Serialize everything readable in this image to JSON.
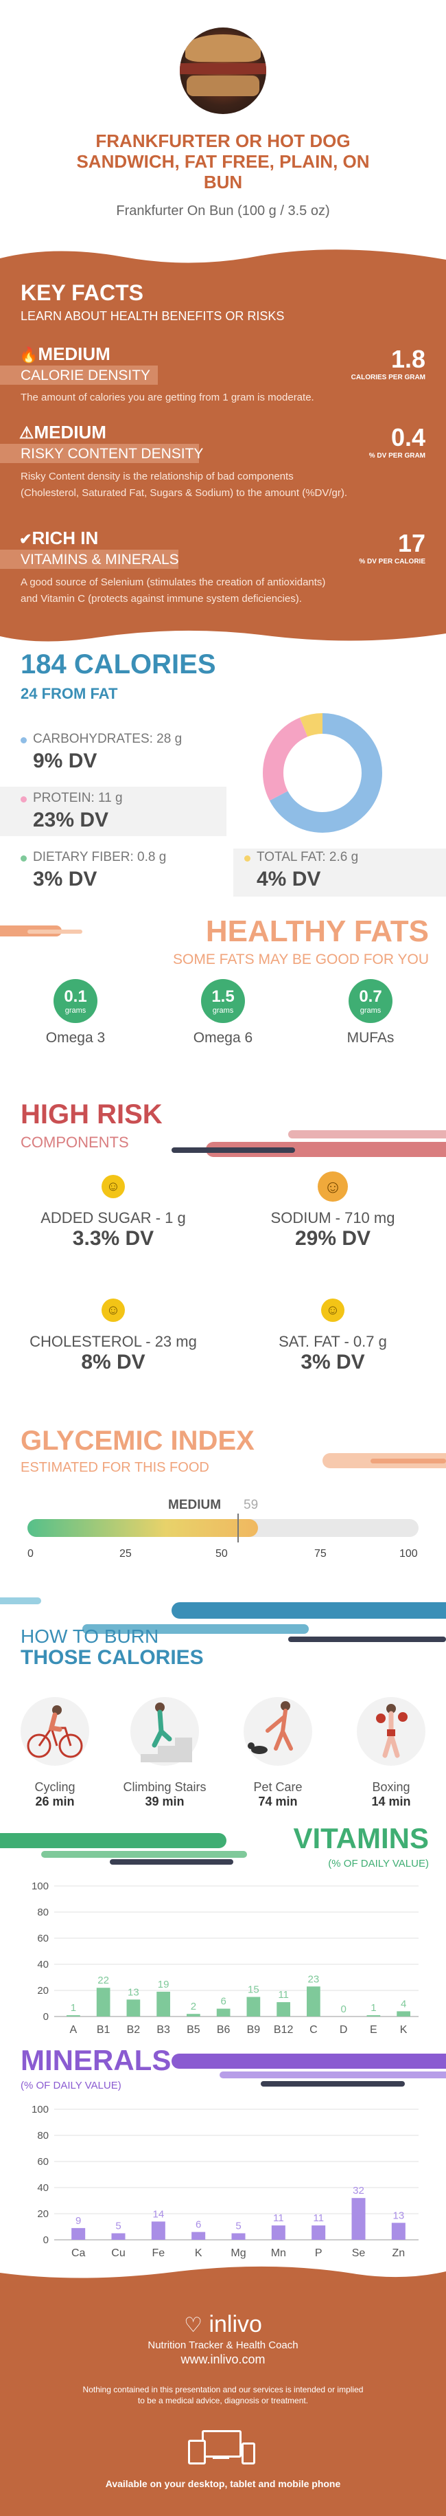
{
  "header": {
    "title_line1": "FRANKFURTER OR HOT DOG",
    "title_line2": "SANDWICH, FAT FREE, PLAIN, ON",
    "title_line3": "BUN",
    "subtitle": "Frankfurter On Bun (100 g / 3.5 oz)"
  },
  "key_facts": {
    "title": "KEY FACTS",
    "subtitle": "LEARN ABOUT HEALTH BENEFITS OR RISKS",
    "items": [
      {
        "level": "MEDIUM",
        "label": "CALORIE DENSITY",
        "value": "1.8",
        "unit": "CALORIES PER GRAM",
        "desc1": "The amount of calories you are getting from 1 gram is moderate.",
        "desc2": ""
      },
      {
        "level": "MEDIUM",
        "label": "RISKY CONTENT DENSITY",
        "value": "0.4",
        "unit": "% DV PER GRAM",
        "desc1": "Risky Content density is the relationship of bad components",
        "desc2": "(Cholesterol, Saturated Fat, Sugars & Sodium) to the amount (%DV/gr)."
      },
      {
        "level": "RICH  IN",
        "label": "VITAMINS & MINERALS",
        "value": "17",
        "unit": "% DV PER CALORIE",
        "desc1": "A good source of Selenium (stimulates the creation of antioxidants)",
        "desc2": "and Vitamin C (protects against immune system deficiencies)."
      }
    ]
  },
  "calories": {
    "title": "184 CALORIES",
    "from_fat": "24 FROM FAT",
    "carbs_label": "CARBOHYDRATES: 28 g",
    "carbs_dv": "9% DV",
    "protein_label": "PROTEIN: 11 g",
    "protein_dv": "23% DV",
    "fiber_label": "DIETARY FIBER: 0.8 g",
    "fiber_dv": "3% DV",
    "fat_label": "TOTAL FAT: 2.6 g",
    "fat_dv": "4% DV",
    "donut": [
      {
        "name": "carbohydrates",
        "grams": 28,
        "color": "#8fbde6"
      },
      {
        "name": "protein",
        "grams": 11,
        "color": "#f5a3c3"
      },
      {
        "name": "fat",
        "grams": 2.6,
        "color": "#f6d36b"
      }
    ]
  },
  "healthy_fats": {
    "title": "HEALTHY FATS",
    "subtitle": "SOME FATS MAY BE GOOD FOR YOU",
    "items": [
      {
        "value": "0.1",
        "unit": "grams",
        "label": "Omega 3"
      },
      {
        "value": "1.5",
        "unit": "grams",
        "label": "Omega 6"
      },
      {
        "value": "0.7",
        "unit": "grams",
        "label": "MUFAs"
      }
    ]
  },
  "high_risk": {
    "title": "HIGH RISK",
    "subtitle": "COMPONENTS",
    "items": [
      {
        "label": "ADDED SUGAR - 1 g",
        "dv": "3.3% DV"
      },
      {
        "label": "SODIUM - 710 mg",
        "dv": "29% DV"
      },
      {
        "label": "CHOLESTEROL - 23 mg",
        "dv": "8% DV"
      },
      {
        "label": "SAT. FAT - 0.7 g",
        "dv": "3% DV"
      }
    ]
  },
  "glycemic": {
    "title": "GLYCEMIC INDEX",
    "subtitle": "ESTIMATED FOR THIS FOOD",
    "level": "MEDIUM",
    "value": "59",
    "fraction": 0.59,
    "ticks": [
      "0",
      "25",
      "50",
      "75",
      "100"
    ]
  },
  "burn": {
    "title1": "HOW TO BURN",
    "title2": "THOSE CALORIES",
    "items": [
      {
        "label": "Cycling",
        "time": "26 min"
      },
      {
        "label": "Climbing Stairs",
        "time": "39 min"
      },
      {
        "label": "Pet Care",
        "time": "74 min"
      },
      {
        "label": "Boxing",
        "time": "14 min"
      }
    ]
  },
  "vitamins": {
    "title": "VITAMINS",
    "subtitle": "(% OF DAILY VALUE)"
  },
  "minerals": {
    "title": "MINERALS",
    "subtitle": "(% OF DAILY VALUE)"
  },
  "chart_data": [
    {
      "type": "bar",
      "categories": [
        "A",
        "B1",
        "B2",
        "B3",
        "B5",
        "B6",
        "B9",
        "B12",
        "C",
        "D",
        "E",
        "K"
      ],
      "values": [
        1,
        22,
        13,
        19,
        2,
        6,
        15,
        11,
        23,
        0,
        1,
        4
      ],
      "ylim": [
        0,
        100
      ],
      "yticks": [
        "0",
        "20",
        "40",
        "60",
        "80",
        "100"
      ],
      "color": "#7fc99a",
      "title": "VITAMINS"
    },
    {
      "type": "bar",
      "categories": [
        "Ca",
        "Cu",
        "Fe",
        "K",
        "Mg",
        "Mn",
        "P",
        "Se",
        "Zn"
      ],
      "values": [
        9,
        5,
        14,
        6,
        5,
        11,
        11,
        32,
        13
      ],
      "ylim": [
        0,
        100
      ],
      "yticks": [
        "0",
        "20",
        "40",
        "60",
        "80",
        "100"
      ],
      "color": "#a98ee6",
      "title": "MINERALS"
    }
  ],
  "footer": {
    "brand": "inlivo",
    "tagline": "Nutrition Tracker & Health Coach",
    "url": "www.inlivo.com",
    "disclaimer1": "Nothing contained in this presentation and our services is intended or implied",
    "disclaimer2": "to be a medical advice, diagnosis or treatment.",
    "available": "Available on your desktop, tablet and mobile phone"
  }
}
